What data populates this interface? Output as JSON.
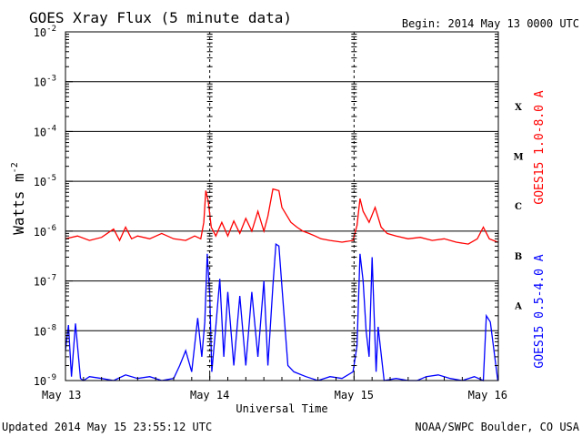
{
  "chart_data": {
    "type": "line",
    "title": "GOES Xray Flux (5 minute data)",
    "begin_label": "Begin:  2014 May 13 0000 UTC",
    "xlabel": "Universal Time",
    "ylabel": "Watts m",
    "ylabel_exponent": "-2",
    "yscale": "log",
    "ylim": [
      1e-09,
      0.01
    ],
    "y_ticks": [
      {
        "base": "10",
        "exp": "-2",
        "value": 0.01
      },
      {
        "base": "10",
        "exp": "-3",
        "value": 0.001
      },
      {
        "base": "10",
        "exp": "-4",
        "value": 0.0001
      },
      {
        "base": "10",
        "exp": "-5",
        "value": 1e-05
      },
      {
        "base": "10",
        "exp": "-6",
        "value": 1e-06
      },
      {
        "base": "10",
        "exp": "-7",
        "value": 1e-07
      },
      {
        "base": "10",
        "exp": "-8",
        "value": 1e-08
      },
      {
        "base": "10",
        "exp": "-9",
        "value": 1e-09
      }
    ],
    "xlim": [
      "2014-05-13 00:00",
      "2014-05-16 00:00"
    ],
    "x_ticks": [
      "May 13",
      "May 14",
      "May 15",
      "May 16"
    ],
    "flare_classes": [
      {
        "label": "X",
        "value": 0.00032
      },
      {
        "label": "M",
        "value": 3.2e-05
      },
      {
        "label": "C",
        "value": 3.2e-06
      },
      {
        "label": "B",
        "value": 3.2e-07
      },
      {
        "label": "A",
        "value": 3.2e-08
      }
    ],
    "grid": true,
    "series": [
      {
        "name": "GOES15 1.0-8.0 A",
        "color": "#ff0000",
        "x": [
          "05-13 00:00",
          "05-13 02:00",
          "05-13 04:00",
          "05-13 06:00",
          "05-13 08:00",
          "05-13 09:00",
          "05-13 10:00",
          "05-13 11:00",
          "05-13 12:00",
          "05-13 14:00",
          "05-13 16:00",
          "05-13 18:00",
          "05-13 20:00",
          "05-13 21:30",
          "05-13 22:30",
          "05-13 23:00",
          "05-13 23:20",
          "05-13 23:45",
          "05-14 00:15",
          "05-14 01:00",
          "05-14 02:00",
          "05-14 03:00",
          "05-14 04:00",
          "05-14 05:00",
          "05-14 06:00",
          "05-14 07:00",
          "05-14 08:00",
          "05-14 09:00",
          "05-14 09:40",
          "05-14 10:30",
          "05-14 11:30",
          "05-14 12:00",
          "05-14 13:30",
          "05-14 14:30",
          "05-14 15:30",
          "05-14 16:30",
          "05-14 17:30",
          "05-14 18:30",
          "05-14 20:00",
          "05-14 22:00",
          "05-14 23:50",
          "05-15 00:30",
          "05-15 01:00",
          "05-15 01:30",
          "05-15 02:30",
          "05-15 03:30",
          "05-15 04:30",
          "05-15 05:30",
          "05-15 07:00",
          "05-15 09:00",
          "05-15 11:00",
          "05-15 13:00",
          "05-15 15:00",
          "05-15 17:00",
          "05-15 19:00",
          "05-15 20:30",
          "05-15 21:30",
          "05-15 22:30",
          "05-15 23:55"
        ],
        "values": [
          7e-07,
          8e-07,
          6.5e-07,
          7.5e-07,
          1.1e-06,
          6.5e-07,
          1.2e-06,
          7e-07,
          8e-07,
          7e-07,
          9e-07,
          7e-07,
          6.5e-07,
          8e-07,
          7e-07,
          1.5e-06,
          6.5e-06,
          4e-06,
          1.2e-06,
          8e-07,
          1.5e-06,
          8e-07,
          1.6e-06,
          9e-07,
          1.8e-06,
          1e-06,
          2.5e-06,
          1e-06,
          2e-06,
          7e-06,
          6.5e-06,
          3e-06,
          1.5e-06,
          1.2e-06,
          1e-06,
          9e-07,
          8e-07,
          7e-07,
          6.5e-07,
          6e-07,
          6.5e-07,
          1.3e-06,
          4.5e-06,
          2.5e-06,
          1.5e-06,
          3e-06,
          1.2e-06,
          9e-07,
          8e-07,
          7e-07,
          7.5e-07,
          6.5e-07,
          7e-07,
          6e-07,
          5.5e-07,
          7e-07,
          1.2e-06,
          7e-07,
          6e-07
        ]
      },
      {
        "name": "GOES15 0.5-4.0 A",
        "color": "#0000ff",
        "x": [
          "05-13 00:00",
          "05-13 00:30",
          "05-13 01:00",
          "05-13 01:40",
          "05-13 02:30",
          "05-13 03:00",
          "05-13 04:00",
          "05-13 06:00",
          "05-13 08:00",
          "05-13 10:00",
          "05-13 12:00",
          "05-13 14:00",
          "05-13 16:00",
          "05-13 18:00",
          "05-13 19:00",
          "05-13 20:00",
          "05-13 21:00",
          "05-13 22:00",
          "05-13 22:40",
          "05-13 23:10",
          "05-13 23:35",
          "05-14 00:00",
          "05-14 00:20",
          "05-14 01:00",
          "05-14 01:40",
          "05-14 02:20",
          "05-14 03:00",
          "05-14 04:00",
          "05-14 05:00",
          "05-14 06:00",
          "05-14 07:00",
          "05-14 08:00",
          "05-14 09:00",
          "05-14 09:40",
          "05-14 10:30",
          "05-14 11:00",
          "05-14 11:30",
          "05-14 12:15",
          "05-14 13:00",
          "05-14 14:00",
          "05-14 16:00",
          "05-14 18:00",
          "05-14 20:00",
          "05-14 22:00",
          "05-14 23:50",
          "05-15 00:30",
          "05-15 01:00",
          "05-15 01:30",
          "05-15 02:00",
          "05-15 02:30",
          "05-15 03:00",
          "05-15 03:40",
          "05-15 04:00",
          "05-15 05:00",
          "05-15 07:00",
          "05-15 09:00",
          "05-15 10:30",
          "05-15 12:00",
          "05-15 14:00",
          "05-15 16:00",
          "05-15 18:00",
          "05-15 20:00",
          "05-15 21:30",
          "05-15 22:00",
          "05-15 22:40",
          "05-15 23:55"
        ],
        "values": [
          4e-09,
          1.3e-08,
          1.2e-09,
          1.4e-08,
          1.1e-09,
          1e-09,
          1.2e-09,
          1.1e-09,
          1e-09,
          1.3e-09,
          1.1e-09,
          1.2e-09,
          1e-09,
          1.1e-09,
          2e-09,
          4e-09,
          1.5e-09,
          1.8e-08,
          3e-09,
          1.5e-08,
          3.5e-07,
          5e-08,
          1.5e-09,
          1.2e-08,
          1.1e-07,
          3e-09,
          6e-08,
          2e-09,
          5e-08,
          2e-09,
          6e-08,
          3e-09,
          1e-07,
          2e-09,
          8e-08,
          5.5e-07,
          5e-07,
          3e-08,
          2e-09,
          1.5e-09,
          1.2e-09,
          1e-09,
          1.2e-09,
          1.1e-09,
          1.5e-09,
          5e-09,
          3.5e-07,
          1e-07,
          1e-08,
          3e-09,
          3e-07,
          1.5e-09,
          1.2e-08,
          1e-09,
          1.1e-09,
          1e-09,
          1e-09,
          1.2e-09,
          1.3e-09,
          1.1e-09,
          1e-09,
          1.2e-09,
          1e-09,
          2e-08,
          1.5e-08,
          1e-09
        ]
      }
    ]
  },
  "footer": {
    "updated": "Updated 2014 May 15 23:55:12 UTC",
    "credit": "NOAA/SWPC Boulder, CO USA"
  }
}
